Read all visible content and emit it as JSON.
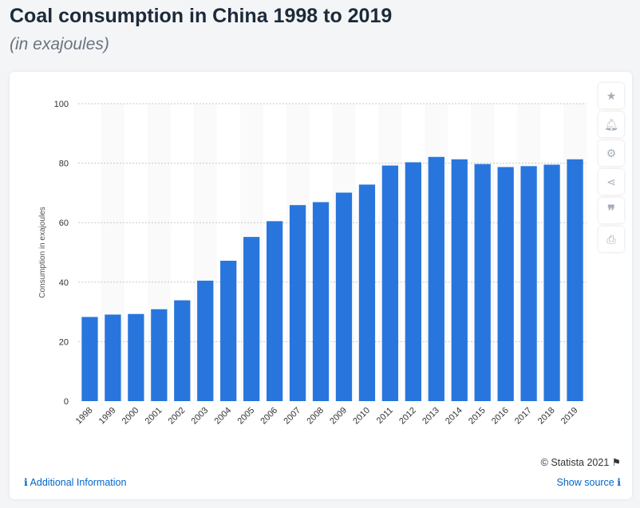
{
  "header": {
    "title": "Coal consumption in China 1998 to 2019",
    "subtitle": "(in exajoules)"
  },
  "toolbar": {
    "icons": [
      "star-icon",
      "bell-icon",
      "gear-icon",
      "share-icon",
      "quote-icon",
      "print-icon"
    ]
  },
  "footer": {
    "additional_info": "Additional Information",
    "copyright": "© Statista 2021",
    "show_source": "Show source"
  },
  "chart_data": {
    "type": "bar",
    "title": "Coal consumption in China 1998 to 2019",
    "subtitle": "(in exajoules)",
    "xlabel": "",
    "ylabel": "Consumption in exajoules",
    "ylim": [
      0,
      100
    ],
    "yticks": [
      0,
      20,
      40,
      60,
      80,
      100
    ],
    "grid": true,
    "color": "#2876dd",
    "categories": [
      "1998",
      "1999",
      "2000",
      "2001",
      "2002",
      "2003",
      "2004",
      "2005",
      "2006",
      "2007",
      "2008",
      "2009",
      "2010",
      "2011",
      "2012",
      "2013",
      "2014",
      "2015",
      "2016",
      "2017",
      "2018",
      "2019"
    ],
    "values": [
      28.3,
      29.1,
      29.3,
      30.9,
      33.9,
      40.5,
      47.2,
      55.2,
      60.5,
      65.9,
      66.9,
      70.1,
      72.8,
      79.2,
      80.3,
      82.1,
      81.3,
      79.7,
      78.7,
      79.0,
      79.5,
      81.3
    ]
  }
}
